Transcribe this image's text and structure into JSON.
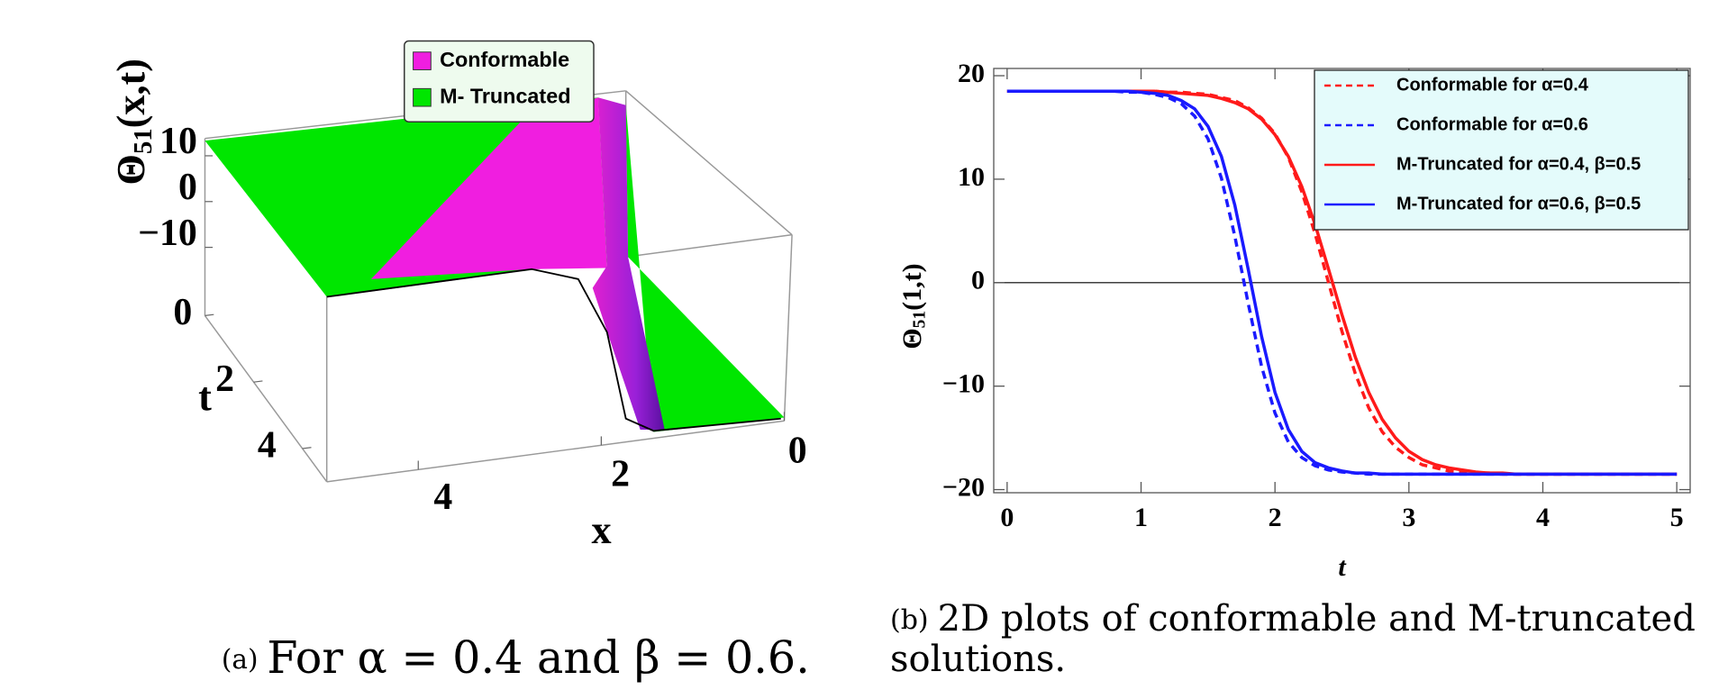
{
  "chart_data": [
    {
      "type": "surface3d",
      "zlabel": [
        "Θ",
        "51",
        "(x,t)"
      ],
      "xlabel": "x",
      "ylabel": "t",
      "xlim": [
        0,
        5
      ],
      "xticks": [
        0,
        2,
        4
      ],
      "ylim": [
        0,
        5
      ],
      "yticks": [
        0,
        2,
        4
      ],
      "zlim": [
        -15,
        15
      ],
      "zticks": [
        {
          "value": -10,
          "label": "−10"
        },
        0,
        10
      ],
      "series": [
        {
          "name": "Conformable",
          "color": "#f01ee0"
        },
        {
          "name": "M- Truncated",
          "color": "#00e600"
        }
      ],
      "caption_label": "(a)",
      "caption": [
        "For α = 0.4 and β = 0.6."
      ]
    },
    {
      "type": "line",
      "xlabel": "t",
      "ylabel": [
        "Θ",
        "51",
        "(1,t)"
      ],
      "xlim": [
        -0.1,
        5.1
      ],
      "xticks": [
        0,
        1,
        2,
        3,
        4,
        5
      ],
      "ylim": [
        -20.3,
        20.7
      ],
      "yticks": [
        {
          "value": -20,
          "label": "−20"
        },
        {
          "value": -10,
          "label": "−10"
        },
        0,
        10,
        20
      ],
      "x": [
        0,
        0.1,
        0.2,
        0.3,
        0.4,
        0.5,
        0.6,
        0.7,
        0.8,
        0.9,
        1,
        1.1,
        1.2,
        1.3,
        1.4,
        1.5,
        1.6,
        1.7,
        1.8,
        1.9,
        2,
        2.1,
        2.2,
        2.3,
        2.4,
        2.5,
        2.6,
        2.7,
        2.8,
        2.9,
        3,
        3.1,
        3.2,
        3.3,
        3.4,
        3.5,
        3.6,
        3.7,
        3.8,
        3.9,
        4,
        4.1,
        4.2,
        4.3,
        4.4,
        4.5,
        4.6,
        4.7,
        4.8,
        4.9,
        5
      ],
      "series": [
        {
          "name": "Conformable for α=0.4",
          "color": "#ff1a1a",
          "dashed": true,
          "values": [
            18.5,
            18.5,
            18.5,
            18.5,
            18.5,
            18.5,
            18.5,
            18.5,
            18.5,
            18.5,
            18.5,
            18.5,
            18.4,
            18.4,
            18.3,
            18.2,
            17.9,
            17.6,
            16.9,
            15.9,
            14.4,
            12.1,
            8.8,
            4.7,
            0,
            -4.7,
            -8.8,
            -12.1,
            -14.4,
            -15.9,
            -16.9,
            -17.6,
            -17.9,
            -18.2,
            -18.3,
            -18.4,
            -18.4,
            -18.5,
            -18.5,
            -18.5,
            -18.5,
            -18.5,
            -18.5,
            -18.5,
            -18.5,
            -18.5,
            -18.5,
            -18.5,
            -18.5,
            -18.5,
            -18.5
          ]
        },
        {
          "name": "Conformable for α=0.6",
          "color": "#1a1aff",
          "dashed": true,
          "values": [
            18.5,
            18.5,
            18.5,
            18.5,
            18.5,
            18.5,
            18.5,
            18.5,
            18.5,
            18.4,
            18.4,
            18.2,
            17.9,
            17.3,
            16.1,
            13.9,
            10.1,
            4.5,
            -2.0,
            -8.1,
            -12.6,
            -15.4,
            -16.9,
            -17.7,
            -18.1,
            -18.3,
            -18.4,
            -18.5,
            -18.5,
            -18.5,
            -18.5,
            -18.5,
            -18.5,
            -18.5,
            -18.5,
            -18.5,
            -18.5,
            -18.5,
            -18.5,
            -18.5,
            -18.5,
            -18.5,
            -18.5,
            -18.5,
            -18.5,
            -18.5,
            -18.5,
            -18.5,
            -18.5,
            -18.5,
            -18.5
          ]
        },
        {
          "name": "M-Truncated for α=0.4, β=0.5",
          "color": "#ff1a1a",
          "dashed": false,
          "values": [
            18.5,
            18.5,
            18.5,
            18.5,
            18.5,
            18.5,
            18.5,
            18.5,
            18.5,
            18.5,
            18.5,
            18.5,
            18.4,
            18.3,
            18.2,
            18.1,
            17.8,
            17.4,
            16.8,
            15.8,
            14.3,
            12.2,
            9.3,
            5.6,
            1.3,
            -3.1,
            -7.2,
            -10.6,
            -13.2,
            -15.0,
            -16.3,
            -17.1,
            -17.6,
            -17.9,
            -18.1,
            -18.3,
            -18.4,
            -18.4,
            -18.5,
            -18.5,
            -18.5,
            -18.5,
            -18.5,
            -18.5,
            -18.5,
            -18.5,
            -18.5,
            -18.5,
            -18.5,
            -18.5,
            -18.5
          ]
        },
        {
          "name": "M-Truncated for α=0.6, β=0.5",
          "color": "#1a1aff",
          "dashed": false,
          "values": [
            18.5,
            18.5,
            18.5,
            18.5,
            18.5,
            18.5,
            18.5,
            18.5,
            18.5,
            18.5,
            18.4,
            18.3,
            18.1,
            17.6,
            16.8,
            15.1,
            12.2,
            7.5,
            1.3,
            -5.2,
            -10.6,
            -14.2,
            -16.3,
            -17.4,
            -17.9,
            -18.2,
            -18.4,
            -18.4,
            -18.5,
            -18.5,
            -18.5,
            -18.5,
            -18.5,
            -18.5,
            -18.5,
            -18.5,
            -18.5,
            -18.5,
            -18.5,
            -18.5,
            -18.5,
            -18.5,
            -18.5,
            -18.5,
            -18.5,
            -18.5,
            -18.5,
            -18.5,
            -18.5,
            -18.5,
            -18.5
          ]
        }
      ],
      "caption_label": "(b)",
      "caption": [
        "2D plots of conformable and M-truncated",
        "solutions."
      ]
    }
  ]
}
